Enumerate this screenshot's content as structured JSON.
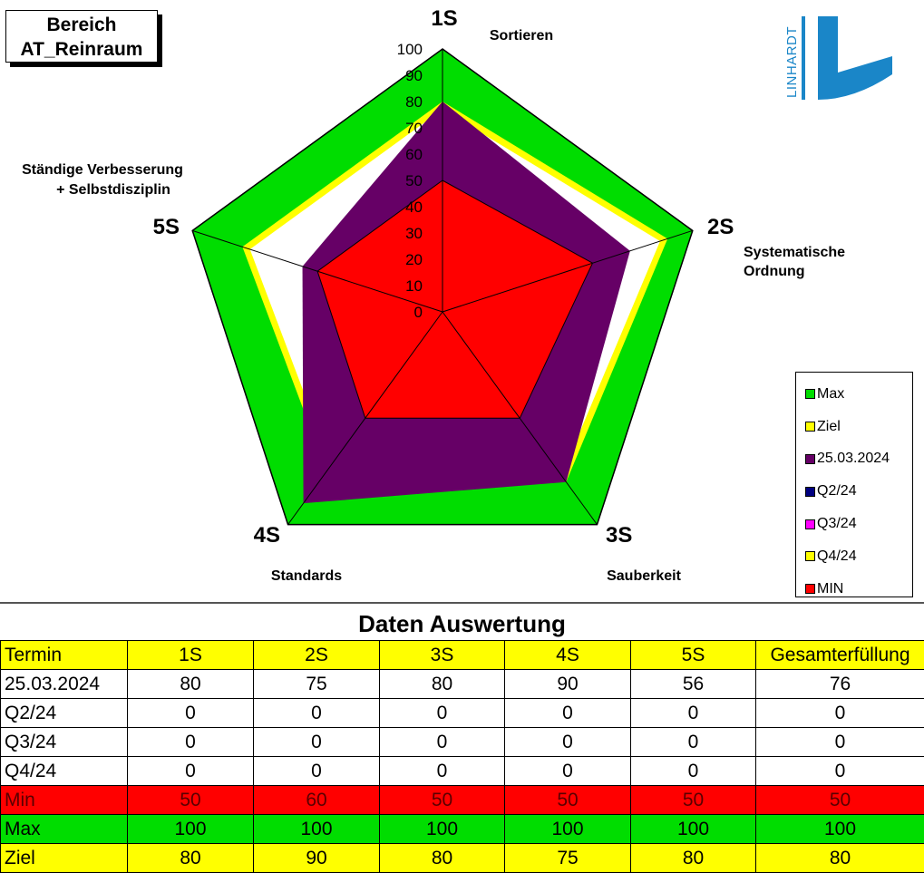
{
  "area": {
    "line1": "Bereich",
    "line2": "AT_Reinraum"
  },
  "chart_data": {
    "type": "radar",
    "axes": [
      {
        "code": "1S",
        "label": "Sortieren"
      },
      {
        "code": "2S",
        "label": "Systematische Ordnung"
      },
      {
        "code": "3S",
        "label": "Sauberkeit"
      },
      {
        "code": "4S",
        "label": "Standards"
      },
      {
        "code": "5S",
        "label": "Ständige Verbesserung + Selbstdisziplin"
      }
    ],
    "r_ticks": [
      "0",
      "10",
      "20",
      "30",
      "40",
      "50",
      "60",
      "70",
      "80",
      "90",
      "100"
    ],
    "rlim": [
      0,
      100
    ],
    "series": [
      {
        "name": "Max",
        "values": [
          100,
          100,
          100,
          100,
          100
        ],
        "color": "#00dd00"
      },
      {
        "name": "Ziel",
        "values": [
          80,
          90,
          80,
          75,
          80
        ],
        "color": "#ffff00"
      },
      {
        "name": "25.03.2024",
        "values": [
          80,
          75,
          80,
          90,
          56
        ],
        "color": "#660066"
      },
      {
        "name": "Q2/24",
        "values": [
          0,
          0,
          0,
          0,
          0
        ],
        "color": "#000080"
      },
      {
        "name": "Q3/24",
        "values": [
          0,
          0,
          0,
          0,
          0
        ],
        "color": "#ff00ff"
      },
      {
        "name": "Q4/24",
        "values": [
          0,
          0,
          0,
          0,
          0
        ],
        "color": "#ffff00"
      },
      {
        "name": "MIN",
        "values": [
          50,
          60,
          50,
          50,
          50
        ],
        "color": "#ff0000"
      }
    ],
    "legend_position": "right"
  },
  "logo": {
    "text": "LINHARDT",
    "color": "#1a86c8"
  },
  "table": {
    "title": "Daten Auswertung",
    "headers": [
      "Termin",
      "1S",
      "2S",
      "3S",
      "4S",
      "5S",
      "Gesamterfüllung"
    ],
    "rows": [
      {
        "label": "25.03.2024",
        "values": [
          "80",
          "75",
          "80",
          "90",
          "56",
          "76"
        ]
      },
      {
        "label": "Q2/24",
        "values": [
          "0",
          "0",
          "0",
          "0",
          "0",
          "0"
        ]
      },
      {
        "label": "Q3/24",
        "values": [
          "0",
          "0",
          "0",
          "0",
          "0",
          "0"
        ]
      },
      {
        "label": "Q4/24",
        "values": [
          "0",
          "0",
          "0",
          "0",
          "0",
          "0"
        ]
      },
      {
        "label": "Min",
        "values": [
          "50",
          "60",
          "50",
          "50",
          "50",
          "50"
        ]
      },
      {
        "label": "Max",
        "values": [
          "100",
          "100",
          "100",
          "100",
          "100",
          "100"
        ]
      },
      {
        "label": "Ziel",
        "values": [
          "80",
          "90",
          "80",
          "75",
          "80",
          "80"
        ]
      }
    ]
  }
}
